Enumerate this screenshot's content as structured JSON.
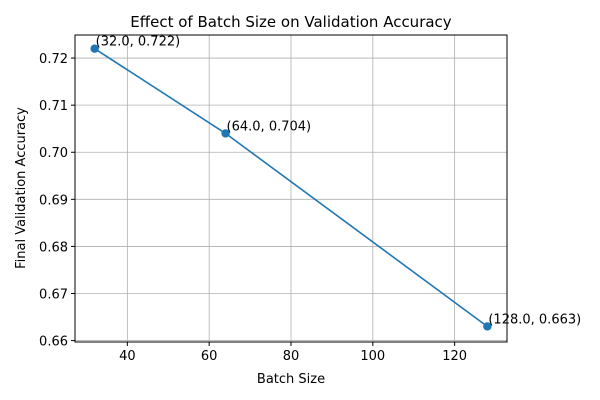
{
  "chart_data": {
    "type": "line",
    "title": "Effect of Batch Size on Validation Accuracy",
    "xlabel": "Batch Size",
    "ylabel": "Final Validation Accuracy",
    "x": [
      32,
      64,
      128
    ],
    "series": [
      {
        "values": [
          0.722,
          0.704,
          0.663
        ],
        "color": "#1f77b4",
        "marker": "circle"
      }
    ],
    "point_labels": [
      "(32.0, 0.722)",
      "(64.0, 0.704)",
      "(128.0, 0.663)"
    ],
    "xlim": [
      27.2,
      132.8
    ],
    "ylim": [
      0.6597,
      0.7249
    ],
    "xticks": [
      40,
      60,
      80,
      100,
      120
    ],
    "xtick_labels": [
      "40",
      "60",
      "80",
      "100",
      "120"
    ],
    "yticks": [
      0.66,
      0.67,
      0.68,
      0.69,
      0.7,
      0.71,
      0.72
    ],
    "ytick_labels": [
      "0.66",
      "0.67",
      "0.68",
      "0.69",
      "0.70",
      "0.71",
      "0.72"
    ],
    "grid": true,
    "legend": "none"
  }
}
